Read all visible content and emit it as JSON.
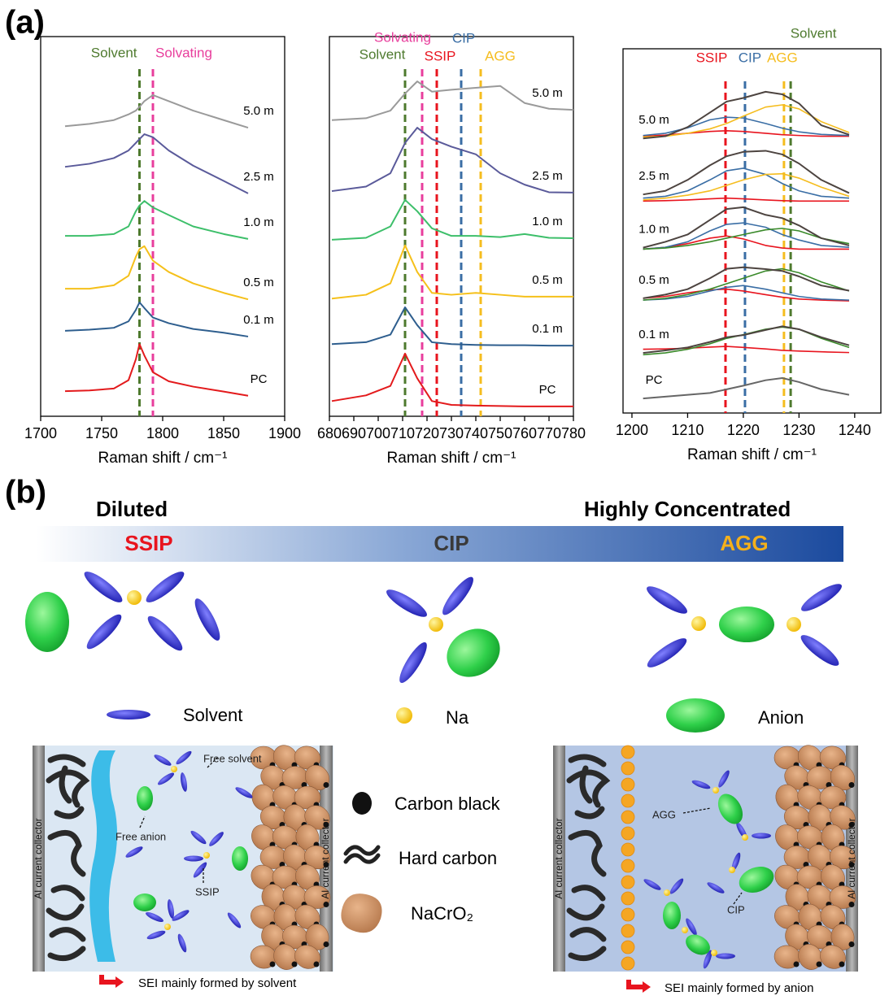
{
  "panel_labels": [
    "(a)",
    "(b)"
  ],
  "chart_data": [
    {
      "type": "line",
      "x_label": "Raman shift / cm⁻¹",
      "xlim": [
        1700,
        1900
      ],
      "xticks": [
        1700,
        1750,
        1800,
        1850,
        1900
      ],
      "ylim": [
        0,
        100
      ],
      "x": [
        1720,
        1740,
        1760,
        1772,
        1778,
        1781,
        1785,
        1792,
        1805,
        1825,
        1850,
        1870
      ],
      "markers": [
        {
          "label": "Solvent",
          "x": 1781,
          "color": "#4e7a2e"
        },
        {
          "label": "Solvating",
          "x": 1792,
          "color": "#e83e9c"
        }
      ],
      "series": [
        {
          "name": "5.0 m",
          "color": "#9a9a9a",
          "values": [
            76.4,
            77,
            78,
            79.5,
            80.5,
            81.5,
            83,
            84.6,
            83,
            80.5,
            78,
            76
          ]
        },
        {
          "name": "2.5 m",
          "color": "#5a5a9a",
          "values": [
            65.7,
            66.5,
            68,
            70,
            72,
            73,
            74.3,
            73.5,
            70,
            66,
            62,
            58.7
          ]
        },
        {
          "name": "1.0 m",
          "color": "#3dbf6a",
          "values": [
            47.5,
            47.5,
            48,
            50,
            54,
            55.5,
            56.7,
            55,
            53,
            50,
            48,
            46.7
          ]
        },
        {
          "name": "0.5 m",
          "color": "#f5c01a",
          "values": [
            33.6,
            33.6,
            34.5,
            37,
            42,
            44,
            44.8,
            41,
            38,
            35,
            32.5,
            30.8
          ]
        },
        {
          "name": "0.1 m",
          "color": "#2e5e8e",
          "values": [
            22.5,
            22.8,
            23.3,
            25,
            28,
            30,
            28.5,
            26,
            24.5,
            23,
            22,
            21
          ]
        },
        {
          "name": "PC",
          "color": "#e31a1c",
          "values": [
            6.6,
            6.8,
            7.3,
            9.5,
            15,
            19,
            16,
            11.6,
            9.2,
            7.8,
            6.5,
            5.4
          ]
        }
      ]
    },
    {
      "type": "line",
      "x_label": "Raman shift / cm⁻¹",
      "xlim": [
        680,
        780
      ],
      "xticks": [
        680,
        690,
        700,
        710,
        720,
        730,
        740,
        750,
        760,
        770,
        780
      ],
      "ylim": [
        0,
        100
      ],
      "x": [
        681,
        695,
        705,
        711,
        716,
        722,
        730,
        740,
        750,
        760,
        770,
        780
      ],
      "markers": [
        {
          "label": "Solvent",
          "x": 711,
          "color": "#4e7a2e"
        },
        {
          "label": "Solvating",
          "x": 718,
          "color": "#e83e9c"
        },
        {
          "label": "SSIP",
          "x": 724,
          "color": "#e8141e"
        },
        {
          "label": "CIP",
          "x": 734,
          "color": "#3a6ea5"
        },
        {
          "label": "AGG",
          "x": 742,
          "color": "#f5bd1f"
        }
      ],
      "series": [
        {
          "name": "5.0 m",
          "color": "#9a9a9a",
          "values": [
            78,
            78.5,
            80.5,
            85,
            88.2,
            85.5,
            86,
            86.5,
            87,
            82.5,
            81,
            80.7
          ]
        },
        {
          "name": "2.5 m",
          "color": "#5a5a9a",
          "values": [
            59.3,
            60.5,
            64,
            72,
            76,
            73,
            71,
            69,
            64,
            61,
            59,
            58.9
          ]
        },
        {
          "name": "1.0 m",
          "color": "#3dbf6a",
          "values": [
            46.5,
            47,
            50,
            57,
            54,
            49.5,
            47.5,
            47.5,
            47.2,
            48,
            47,
            46.9
          ]
        },
        {
          "name": "0.5 m",
          "color": "#f5c01a",
          "values": [
            31,
            32,
            35,
            45,
            38,
            32.5,
            32,
            32.5,
            32,
            31.5,
            31.5,
            31.5
          ]
        },
        {
          "name": "0.1 m",
          "color": "#2e5e8e",
          "values": [
            19,
            19.5,
            21.5,
            28.7,
            24,
            19.5,
            19,
            18.8,
            18.7,
            18.7,
            18.6,
            18.6
          ]
        },
        {
          "name": "PC",
          "color": "#e31a1c",
          "values": [
            4,
            5.5,
            8,
            16.5,
            10,
            4,
            3,
            2.8,
            2.7,
            2.6,
            2.6,
            2.6
          ]
        }
      ]
    },
    {
      "type": "line",
      "x_label": "Raman shift / cm⁻¹",
      "xlim": [
        1198.4,
        1244.7
      ],
      "xticks": [
        1200,
        1210,
        1220,
        1230,
        1240
      ],
      "ylim": [
        0,
        100
      ],
      "x": [
        1202,
        1206,
        1210,
        1214,
        1217,
        1220,
        1224,
        1227,
        1230,
        1234,
        1239
      ],
      "markers": [
        {
          "label": "SSIP",
          "x": 1216.8,
          "color": "#e8141e"
        },
        {
          "label": "CIP",
          "x": 1220.3,
          "color": "#3a6ea5"
        },
        {
          "label": "AGG",
          "x": 1227.3,
          "color": "#f5bd1f"
        },
        {
          "label": "Solvent",
          "x": 1228.5,
          "color": "#4e7a2e"
        }
      ],
      "series": [
        {
          "name": "5.0 m",
          "color": "#4d4440",
          "values": [
            75.4,
            76,
            78.5,
            82.5,
            85.5,
            86.5,
            88.2,
            87.5,
            85,
            79,
            76.4
          ],
          "components": [
            {
              "color": "#e8141e",
              "values": [
                76,
                76.3,
                76.8,
                77.3,
                77.5,
                77.3,
                76.8,
                76.4,
                76.2,
                76,
                76
              ]
            },
            {
              "color": "#3a6ea5",
              "values": [
                76.2,
                76.8,
                78.3,
                80.5,
                81.2,
                81,
                79.5,
                78.2,
                77.2,
                76.5,
                76.2
              ]
            },
            {
              "color": "#f5bd1f",
              "values": [
                75.8,
                76,
                76.8,
                78,
                79.5,
                81.5,
                84,
                84.6,
                83.5,
                80,
                77
              ]
            }
          ]
        },
        {
          "name": "2.5 m",
          "color": "#4d4440",
          "values": [
            60,
            61,
            64,
            68,
            70.5,
            71.7,
            72,
            71,
            68.5,
            64,
            60.4
          ],
          "components": [
            {
              "color": "#e8141e",
              "values": [
                58.2,
                58.3,
                58.5,
                58.8,
                59,
                58.8,
                58.5,
                58.3,
                58.2,
                58.2,
                58.2
              ]
            },
            {
              "color": "#3a6ea5",
              "values": [
                59,
                59.5,
                61,
                64,
                66.5,
                67.2,
                65.5,
                63,
                61,
                59.5,
                59
              ]
            },
            {
              "color": "#f5bd1f",
              "values": [
                58.5,
                59,
                59.8,
                61,
                62.5,
                64,
                65.5,
                65.7,
                64.5,
                62,
                59.5
              ]
            }
          ]
        },
        {
          "name": "1.0 m",
          "color": "#4d4440",
          "values": [
            45.4,
            47,
            49,
            53,
            56,
            56.5,
            54.4,
            53.5,
            51.5,
            48,
            46
          ],
          "components": [
            {
              "color": "#e8141e",
              "values": [
                45,
                45.5,
                46.5,
                48,
                48.6,
                47.8,
                46,
                45.3,
                45,
                45,
                45
              ]
            },
            {
              "color": "#3a6ea5",
              "values": [
                45,
                45.5,
                47,
                50,
                51.8,
                52.2,
                51,
                49,
                47.5,
                46,
                45.5
              ]
            },
            {
              "color": "#3a8a2a",
              "values": [
                45,
                45.3,
                46,
                47,
                48,
                49,
                50.3,
                50.7,
                50,
                48,
                46.5
              ]
            }
          ]
        },
        {
          "name": "0.5 m",
          "color": "#4d4440",
          "values": [
            31.5,
            32.5,
            34,
            37,
            39.6,
            40,
            39.5,
            39,
            37.5,
            35,
            33.6
          ],
          "components": [
            {
              "color": "#e8141e",
              "values": [
                31.5,
                32,
                33,
                33.8,
                34,
                33.5,
                32.5,
                31.8,
                31.3,
                31,
                30.8
              ]
            },
            {
              "color": "#3a6ea5",
              "values": [
                31,
                31.3,
                32,
                33.5,
                34.5,
                35,
                34,
                33,
                32,
                31.3,
                31
              ]
            },
            {
              "color": "#3a8a2a",
              "values": [
                31,
                31.5,
                32.5,
                34,
                35.5,
                37,
                39,
                39.6,
                38.5,
                36,
                33.5
              ]
            }
          ]
        },
        {
          "name": "0.1 m",
          "color": "#4d4440",
          "values": [
            16.5,
            17.2,
            18,
            19.5,
            20.8,
            21.4,
            22.8,
            23.8,
            23,
            20.8,
            18.6
          ],
          "components": [
            {
              "color": "#e8141e",
              "values": [
                17.5,
                17.6,
                17.8,
                18.1,
                18.3,
                18,
                17.6,
                17.2,
                17,
                16.8,
                16.6
              ]
            },
            {
              "color": "#3a8a2a",
              "values": [
                16,
                16.5,
                17.5,
                19,
                20.5,
                21.5,
                23,
                23.6,
                23,
                20.5,
                18
              ]
            }
          ]
        },
        {
          "name": "PC",
          "color": "#666666",
          "values": [
            4,
            4.5,
            5,
            5.5,
            6.5,
            7.5,
            9,
            9.6,
            8.5,
            6.5,
            5
          ]
        }
      ]
    }
  ],
  "diagram": {
    "scale": {
      "left": "Diluted",
      "right": "Highly Concentrated",
      "states": [
        "SSIP",
        "CIP",
        "AGG"
      ]
    },
    "legend": [
      "Solvent",
      "Na",
      "Anion",
      "Carbon black",
      "Hard carbon",
      "NaCrO₂"
    ],
    "cells": [
      {
        "collector_labels": [
          "Al current collector",
          "Al current collector"
        ],
        "annotations": [
          "Free solvent",
          "Free anion",
          "SSIP"
        ],
        "caption": "SEI mainly formed by solvent"
      },
      {
        "collector_labels": [
          "Al current collector",
          "Al current collector"
        ],
        "annotations": [
          "AGG",
          "CIP"
        ],
        "caption": "SEI mainly formed by anion"
      }
    ]
  }
}
